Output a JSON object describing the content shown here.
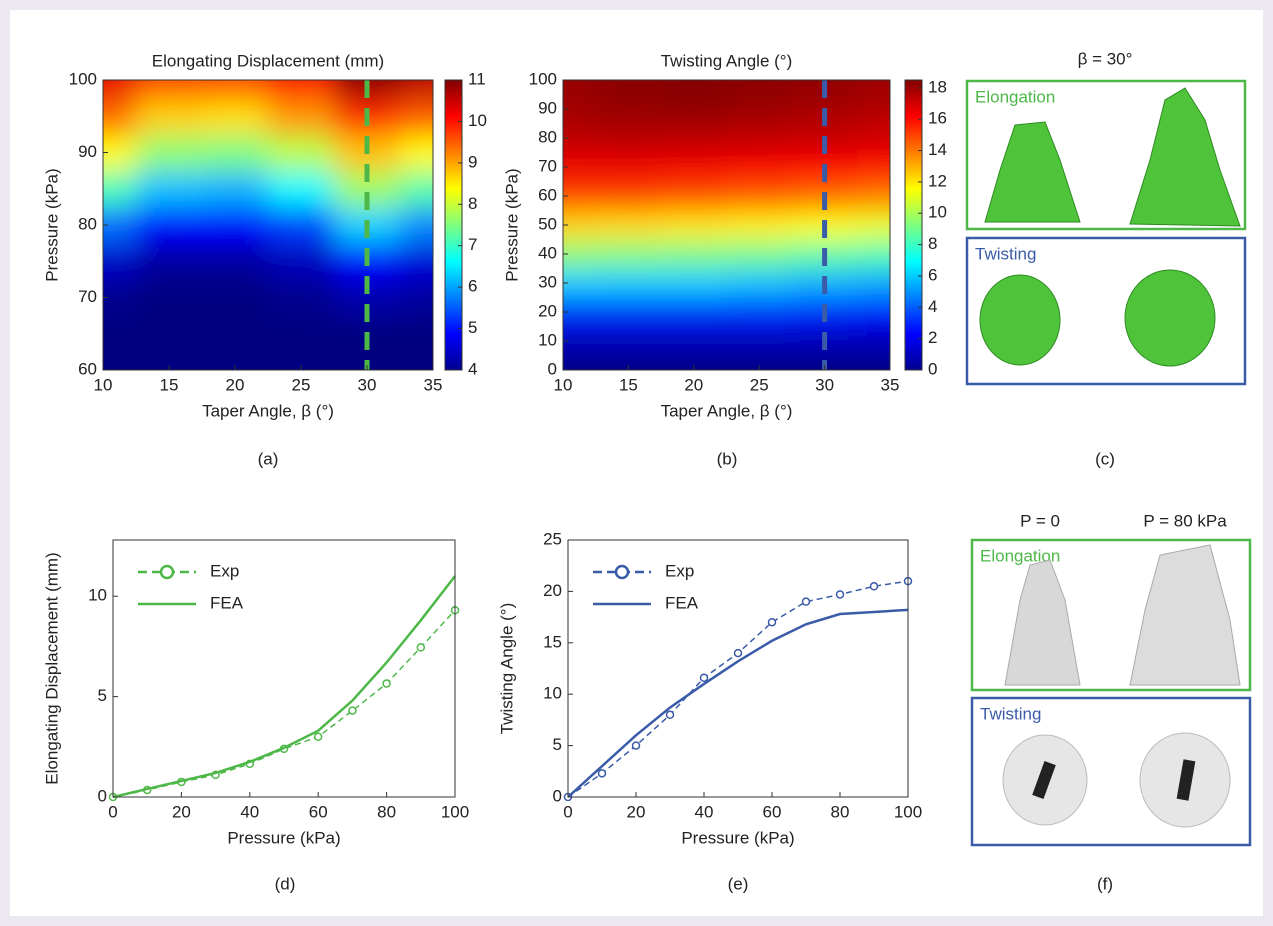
{
  "chart_data": [
    {
      "type": "heatmap",
      "title": "Elongating Displacement (mm)",
      "xlabel": "Taper Angle, β (°)",
      "ylabel": "Pressure (kPa)",
      "x": [
        10,
        15,
        20,
        25,
        30,
        35
      ],
      "y": [
        60,
        65,
        70,
        75,
        80,
        85,
        90,
        95,
        100
      ],
      "z": [
        [
          4,
          4,
          4,
          4,
          4,
          4
        ],
        [
          4,
          4,
          4,
          4,
          4,
          4
        ],
        [
          4.1,
          4,
          4,
          4.1,
          4.3,
          4.2
        ],
        [
          4.5,
          4.2,
          4.2,
          4.4,
          4.9,
          4.6
        ],
        [
          5.6,
          4.9,
          4.9,
          5.3,
          6.3,
          5.8
        ],
        [
          7.1,
          6.2,
          6.1,
          6.6,
          7.7,
          7.2
        ],
        [
          8.4,
          7.6,
          7.5,
          7.9,
          8.8,
          8.4
        ],
        [
          9.4,
          8.7,
          8.6,
          9.1,
          9.8,
          9.5
        ],
        [
          10.3,
          9.6,
          9.6,
          10,
          10.9,
          10.6
        ]
      ],
      "xlim": [
        10,
        35
      ],
      "xticks": [
        10,
        15,
        20,
        25,
        30,
        35
      ],
      "ylim": [
        60,
        100
      ],
      "yticks": [
        60,
        70,
        80,
        90,
        100
      ],
      "clim": [
        4,
        11
      ],
      "cticks": [
        4,
        5,
        6,
        7,
        8,
        9,
        10,
        11
      ],
      "colormap": "jet",
      "vline": {
        "x": 30,
        "color": "#4db848"
      }
    },
    {
      "type": "heatmap",
      "title": "Twisting Angle (°)",
      "xlabel": "Taper Angle, β (°)",
      "ylabel": "Pressure (kPa)",
      "x": [
        10,
        15,
        20,
        25,
        30,
        35
      ],
      "y": [
        0,
        10,
        20,
        30,
        40,
        50,
        60,
        70,
        80,
        90,
        100
      ],
      "z": [
        [
          0,
          0,
          0,
          0,
          0,
          0
        ],
        [
          1,
          1,
          1,
          1,
          1,
          1
        ],
        [
          3,
          3,
          3,
          3,
          2.8,
          2.6
        ],
        [
          6,
          6,
          6,
          5.8,
          5.5,
          5.3
        ],
        [
          9.5,
          9.3,
          9.2,
          9,
          8.6,
          8.3
        ],
        [
          12.3,
          12.2,
          12,
          11.8,
          11.5,
          11.2
        ],
        [
          15,
          15,
          14.8,
          14.6,
          14.3,
          14
        ],
        [
          16.5,
          16.5,
          16.4,
          16.3,
          16.1,
          16
        ],
        [
          17.4,
          17.5,
          17.4,
          17.3,
          17.2,
          17
        ],
        [
          17.9,
          18.1,
          18.2,
          18,
          17.8,
          17.6
        ],
        [
          18.1,
          18.3,
          18.4,
          18.3,
          18.2,
          18
        ]
      ],
      "xlim": [
        10,
        35
      ],
      "xticks": [
        10,
        15,
        20,
        25,
        30,
        35
      ],
      "ylim": [
        0,
        100
      ],
      "yticks": [
        0,
        10,
        20,
        30,
        40,
        50,
        60,
        70,
        80,
        90,
        100
      ],
      "clim": [
        0,
        18.5
      ],
      "cticks": [
        0,
        2,
        4,
        6,
        8,
        10,
        12,
        14,
        16,
        18
      ],
      "colormap": "jet",
      "vline": {
        "x": 30,
        "color": "#3a5ba8"
      }
    },
    {
      "type": "line",
      "xlabel": "Pressure (kPa)",
      "ylabel": "Elongating Displacement (mm)",
      "x": [
        0,
        10,
        20,
        30,
        40,
        50,
        60,
        70,
        80,
        90,
        100
      ],
      "series": [
        {
          "name": "Exp",
          "color": "#4db848",
          "dash": true,
          "marker": "circle",
          "values": [
            0,
            0.35,
            0.75,
            1.1,
            1.65,
            2.4,
            3.0,
            4.3,
            5.65,
            7.45,
            9.3
          ]
        },
        {
          "name": "FEA",
          "color": "#4db848",
          "dash": false,
          "marker": "none",
          "values": [
            0,
            0.4,
            0.8,
            1.2,
            1.75,
            2.45,
            3.3,
            4.8,
            6.7,
            8.8,
            11.0
          ]
        }
      ],
      "xlim": [
        0,
        100
      ],
      "xticks": [
        0,
        20,
        40,
        60,
        80,
        100
      ],
      "ylim": [
        0,
        12.8
      ],
      "yticks": [
        0,
        5,
        10
      ],
      "legend": "upper-left"
    },
    {
      "type": "line",
      "xlabel": "Pressure (kPa)",
      "ylabel": "Twisting Angle (°)",
      "x": [
        0,
        10,
        20,
        30,
        40,
        50,
        60,
        70,
        80,
        90,
        100
      ],
      "series": [
        {
          "name": "Exp",
          "color": "#3a5ba8",
          "dash": true,
          "marker": "circle",
          "values": [
            0,
            2.3,
            5,
            8,
            11.6,
            14,
            17,
            19,
            19.7,
            20.5,
            21
          ]
        },
        {
          "name": "FEA",
          "color": "#3a5ba8",
          "dash": false,
          "marker": "none",
          "values": [
            0,
            3,
            6,
            8.7,
            11,
            13.2,
            15.2,
            16.8,
            17.8,
            18,
            18.2
          ]
        }
      ],
      "xlim": [
        0,
        100
      ],
      "xticks": [
        0,
        20,
        40,
        60,
        80,
        100
      ],
      "ylim": [
        0,
        25
      ],
      "yticks": [
        0,
        5,
        10,
        15,
        20,
        25
      ],
      "legend": "upper-left"
    }
  ],
  "panel_labels": [
    "(a)",
    "(b)",
    "(c)",
    "(d)",
    "(e)",
    "(f)"
  ],
  "panel_c": {
    "title": "β = 30°",
    "boxes": [
      "Elongation",
      "Twisting"
    ]
  },
  "panel_f": {
    "columns": [
      "P = 0",
      "P = 80 kPa"
    ],
    "boxes": [
      "Elongation",
      "Twisting"
    ]
  }
}
